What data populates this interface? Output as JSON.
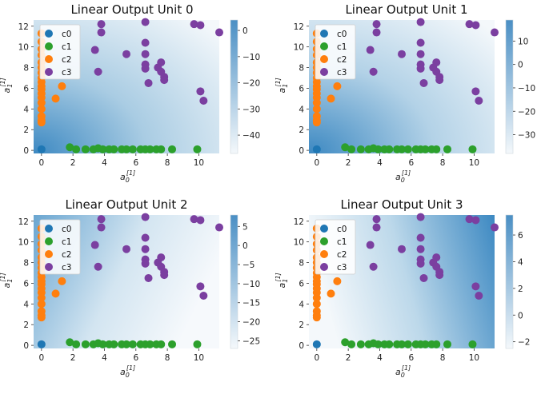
{
  "chart_data": [
    {
      "type": "scatter",
      "title": "Linear Output Unit 0",
      "xlabel_base": "a",
      "xlabel_sub": "0",
      "xlabel_sup": "[1]",
      "ylabel_base": "a",
      "ylabel_sub": "1",
      "ylabel_sup": "[1]",
      "xlim": [
        -0.5,
        11.3
      ],
      "ylim": [
        -0.3,
        12.6
      ],
      "xticks": [
        0,
        2,
        4,
        6,
        8,
        10
      ],
      "yticks": [
        0,
        2,
        4,
        6,
        8,
        10,
        12
      ],
      "colorbar": {
        "min": -47,
        "max": 4,
        "ticks": [
          0,
          -10,
          -20,
          -30,
          -40
        ]
      },
      "gradient": "toward-origin"
    },
    {
      "type": "scatter",
      "title": "Linear Output Unit 1",
      "xlabel_base": "a",
      "xlabel_sub": "0",
      "xlabel_sup": "[1]",
      "ylabel_base": "a",
      "ylabel_sub": "1",
      "ylabel_sup": "[1]",
      "xlim": [
        -0.5,
        11.3
      ],
      "ylim": [
        -0.3,
        12.6
      ],
      "xticks": [
        0,
        2,
        4,
        6,
        8,
        10
      ],
      "yticks": [
        0,
        2,
        4,
        6,
        8,
        10,
        12
      ],
      "colorbar": {
        "min": -38,
        "max": 19,
        "ticks": [
          10,
          0,
          -10,
          -20,
          -30
        ]
      },
      "gradient": "toward-origin"
    },
    {
      "type": "scatter",
      "title": "Linear Output Unit 2",
      "xlabel_base": "a",
      "xlabel_sub": "0",
      "xlabel_sup": "[1]",
      "ylabel_base": "a",
      "ylabel_sub": "1",
      "ylabel_sup": "[1]",
      "xlim": [
        -0.5,
        11.3
      ],
      "ylim": [
        -0.3,
        12.6
      ],
      "xticks": [
        0,
        2,
        4,
        6,
        8,
        10
      ],
      "yticks": [
        0,
        2,
        4,
        6,
        8,
        10,
        12
      ],
      "colorbar": {
        "min": -27,
        "max": 8,
        "ticks": [
          5,
          0,
          -5,
          -10,
          -15,
          -20,
          -25
        ]
      },
      "gradient": "toward-left-top"
    },
    {
      "type": "scatter",
      "title": "Linear Output Unit 3",
      "xlabel_base": "a",
      "xlabel_sub": "0",
      "xlabel_sup": "[1]",
      "ylabel_base": "a",
      "ylabel_sub": "1",
      "ylabel_sup": "[1]",
      "xlim": [
        -0.5,
        11.3
      ],
      "ylim": [
        -0.3,
        12.6
      ],
      "xticks": [
        0,
        2,
        4,
        6,
        8,
        10
      ],
      "yticks": [
        0,
        2,
        4,
        6,
        8,
        10,
        12
      ],
      "colorbar": {
        "min": -2.5,
        "max": 7.5,
        "ticks": [
          6,
          4,
          2,
          0,
          -2
        ]
      },
      "gradient": "toward-right"
    }
  ],
  "shared_series": [
    {
      "name": "c0",
      "color": "#1f77b4",
      "points": [
        [
          0,
          0.1
        ]
      ]
    },
    {
      "name": "c1",
      "color": "#2ca02c",
      "points": [
        [
          1.8,
          0.3
        ],
        [
          2.2,
          0.1
        ],
        [
          2.8,
          0.1
        ],
        [
          3.3,
          0.1
        ],
        [
          3.6,
          0.2
        ],
        [
          3.9,
          0.1
        ],
        [
          4.3,
          0.1
        ],
        [
          4.6,
          0.1
        ],
        [
          5.1,
          0.1
        ],
        [
          5.4,
          0.1
        ],
        [
          5.8,
          0.1
        ],
        [
          6.3,
          0.1
        ],
        [
          6.6,
          0.1
        ],
        [
          6.9,
          0.1
        ],
        [
          7.3,
          0.1
        ],
        [
          7.6,
          0.1
        ],
        [
          8.3,
          0.1
        ],
        [
          9.9,
          0.1
        ]
      ]
    },
    {
      "name": "c2",
      "color": "#ff7f0e",
      "points": [
        [
          0,
          11.3
        ],
        [
          0,
          10.5
        ],
        [
          0,
          9.8
        ],
        [
          0,
          9.2
        ],
        [
          0,
          8.5
        ],
        [
          0,
          8.0
        ],
        [
          0,
          7.5
        ],
        [
          0,
          7.0
        ],
        [
          0,
          6.6
        ],
        [
          0,
          6.2
        ],
        [
          0,
          5.9
        ],
        [
          0,
          5.5
        ],
        [
          0,
          5.1
        ],
        [
          0,
          4.6
        ],
        [
          0,
          4.0
        ],
        [
          0,
          3.3
        ],
        [
          0,
          2.9
        ],
        [
          0,
          2.7
        ],
        [
          0.9,
          5.0
        ],
        [
          1.3,
          6.2
        ]
      ]
    },
    {
      "name": "c3",
      "color": "#7b3fa0",
      "points": [
        [
          3.8,
          12.2
        ],
        [
          6.6,
          12.4
        ],
        [
          9.7,
          12.2
        ],
        [
          10.1,
          12.1
        ],
        [
          11.3,
          11.4
        ],
        [
          3.8,
          11.4
        ],
        [
          6.6,
          10.4
        ],
        [
          3.4,
          9.7
        ],
        [
          5.4,
          9.3
        ],
        [
          6.6,
          9.3
        ],
        [
          6.6,
          8.3
        ],
        [
          6.6,
          7.9
        ],
        [
          7.4,
          8.0
        ],
        [
          7.6,
          8.5
        ],
        [
          7.6,
          7.6
        ],
        [
          7.8,
          7.1
        ],
        [
          7.8,
          6.8
        ],
        [
          3.6,
          7.6
        ],
        [
          6.8,
          6.5
        ],
        [
          10.1,
          5.7
        ],
        [
          10.3,
          4.8
        ]
      ]
    }
  ]
}
